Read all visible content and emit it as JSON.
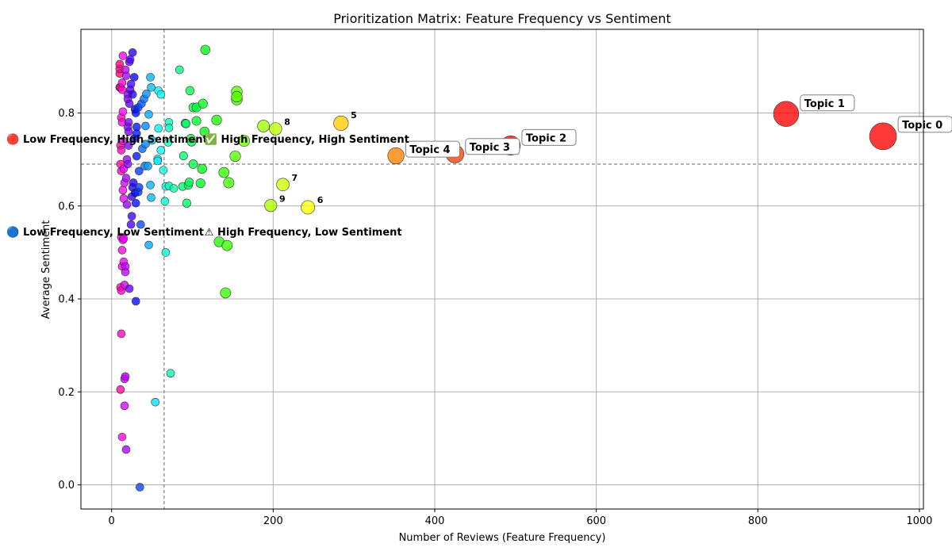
{
  "chart_data": {
    "type": "scatter",
    "title": "Prioritization Matrix: Feature Frequency vs Sentiment",
    "xlabel": "Number of Reviews (Feature Frequency)",
    "ylabel": "Average Sentiment",
    "xlim": [
      -38,
      1005
    ],
    "ylim": [
      -0.052,
      0.98
    ],
    "x_ticks": [
      0,
      200,
      400,
      600,
      800,
      1000
    ],
    "y_ticks": [
      0.0,
      0.2,
      0.4,
      0.6,
      0.8
    ],
    "y_tick_labels": [
      "0.0",
      "0.2",
      "0.4",
      "0.6",
      "0.8"
    ],
    "grid": true,
    "threshold_x": 65,
    "threshold_y": 0.69,
    "quadrant_labels": [
      {
        "text": "🔴 Low Frequency, High Sentiment",
        "x": -130,
        "y": 0.745
      },
      {
        "text": "✅ High Frequency, High Sentiment",
        "x": 115,
        "y": 0.745
      },
      {
        "text": "🔵 Low Frequency, Low Sentiment",
        "x": -130,
        "y": 0.545
      },
      {
        "text": "⚠ High Frequency, Low Sentiment",
        "x": 115,
        "y": 0.545
      }
    ],
    "colors": {
      "grid": "#b0b0b0",
      "threshold": "#808080",
      "edge": "#333333"
    },
    "points": [
      {
        "x": 955,
        "y": 0.75,
        "label": "Topic 0",
        "boxed": true
      },
      {
        "x": 835,
        "y": 0.798,
        "label": "Topic 1",
        "boxed": true
      },
      {
        "x": 494,
        "y": 0.73,
        "label": "Topic 2",
        "boxed": true
      },
      {
        "x": 425,
        "y": 0.712,
        "label": "Topic 3",
        "boxed": true
      },
      {
        "x": 352,
        "y": 0.708,
        "label": "Topic 4",
        "boxed": true
      },
      {
        "x": 284,
        "y": 0.778,
        "label": "5",
        "boxed": false
      },
      {
        "x": 243,
        "y": 0.597,
        "label": "6",
        "boxed": false
      },
      {
        "x": 212,
        "y": 0.646,
        "label": "7",
        "boxed": false
      },
      {
        "x": 203,
        "y": 0.766,
        "label": "8",
        "boxed": false
      },
      {
        "x": 197,
        "y": 0.601,
        "label": "9",
        "boxed": false
      },
      {
        "x": 188,
        "y": 0.772
      },
      {
        "x": 164,
        "y": 0.74
      },
      {
        "x": 155,
        "y": 0.829
      },
      {
        "x": 155,
        "y": 0.846
      },
      {
        "x": 155,
        "y": 0.835
      },
      {
        "x": 153,
        "y": 0.707
      },
      {
        "x": 145,
        "y": 0.65
      },
      {
        "x": 143,
        "y": 0.515
      },
      {
        "x": 141,
        "y": 0.413
      },
      {
        "x": 139,
        "y": 0.672
      },
      {
        "x": 133,
        "y": 0.523
      },
      {
        "x": 130,
        "y": 0.785
      },
      {
        "x": 116,
        "y": 0.936
      },
      {
        "x": 115,
        "y": 0.76
      },
      {
        "x": 113,
        "y": 0.82
      },
      {
        "x": 112,
        "y": 0.68
      },
      {
        "x": 110,
        "y": 0.649
      },
      {
        "x": 105,
        "y": 0.812
      },
      {
        "x": 105,
        "y": 0.783
      },
      {
        "x": 101,
        "y": 0.812
      },
      {
        "x": 101,
        "y": 0.69
      },
      {
        "x": 99,
        "y": 0.738
      },
      {
        "x": 98,
        "y": 0.745
      },
      {
        "x": 97,
        "y": 0.848
      },
      {
        "x": 96,
        "y": 0.651
      },
      {
        "x": 95,
        "y": 0.645
      },
      {
        "x": 93,
        "y": 0.606
      },
      {
        "x": 92,
        "y": 0.777
      },
      {
        "x": 91,
        "y": 0.778
      },
      {
        "x": 89,
        "y": 0.708
      },
      {
        "x": 88,
        "y": 0.642
      },
      {
        "x": 84,
        "y": 0.893
      },
      {
        "x": 77,
        "y": 0.638
      },
      {
        "x": 73,
        "y": 0.24
      },
      {
        "x": 71,
        "y": 0.78
      },
      {
        "x": 71,
        "y": 0.768
      },
      {
        "x": 71,
        "y": 0.643
      },
      {
        "x": 70,
        "y": 0.737
      },
      {
        "x": 67,
        "y": 0.642
      },
      {
        "x": 67,
        "y": 0.5
      },
      {
        "x": 66,
        "y": 0.61
      },
      {
        "x": 64,
        "y": 0.677
      },
      {
        "x": 61,
        "y": 0.84
      },
      {
        "x": 61,
        "y": 0.72
      },
      {
        "x": 58,
        "y": 0.767
      },
      {
        "x": 58,
        "y": 0.848
      },
      {
        "x": 57,
        "y": 0.701
      },
      {
        "x": 57,
        "y": 0.697
      },
      {
        "x": 54,
        "y": 0.178
      },
      {
        "x": 50,
        "y": 0.741
      },
      {
        "x": 49,
        "y": 0.855
      },
      {
        "x": 48,
        "y": 0.877
      },
      {
        "x": 49,
        "y": 0.618
      },
      {
        "x": 48,
        "y": 0.645
      },
      {
        "x": 46,
        "y": 0.797
      },
      {
        "x": 46,
        "y": 0.516
      },
      {
        "x": 45,
        "y": 0.686
      },
      {
        "x": 43,
        "y": 0.841
      },
      {
        "x": 42,
        "y": 0.772
      },
      {
        "x": 42,
        "y": 0.733
      },
      {
        "x": 41,
        "y": 0.686
      },
      {
        "x": 40,
        "y": 0.83
      },
      {
        "x": 38,
        "y": 0.723
      },
      {
        "x": 37,
        "y": 0.82
      },
      {
        "x": 36,
        "y": 0.56
      },
      {
        "x": 35,
        "y": -0.005
      },
      {
        "x": 34,
        "y": 0.675
      },
      {
        "x": 34,
        "y": 0.64
      },
      {
        "x": 33,
        "y": 0.812
      },
      {
        "x": 33,
        "y": 0.63
      },
      {
        "x": 31,
        "y": 0.77
      },
      {
        "x": 31,
        "y": 0.756
      },
      {
        "x": 31,
        "y": 0.707
      },
      {
        "x": 30,
        "y": 0.8
      },
      {
        "x": 30,
        "y": 0.606
      },
      {
        "x": 30,
        "y": 0.395
      },
      {
        "x": 29,
        "y": 0.808
      },
      {
        "x": 29,
        "y": 0.628
      },
      {
        "x": 28,
        "y": 0.877
      },
      {
        "x": 28,
        "y": 0.745
      },
      {
        "x": 27,
        "y": 0.65
      },
      {
        "x": 26,
        "y": 0.93
      },
      {
        "x": 26,
        "y": 0.84
      },
      {
        "x": 26,
        "y": 0.64
      },
      {
        "x": 25,
        "y": 0.578
      },
      {
        "x": 25,
        "y": 0.62
      },
      {
        "x": 24,
        "y": 0.862
      },
      {
        "x": 24,
        "y": 0.56
      },
      {
        "x": 23,
        "y": 0.915
      },
      {
        "x": 23,
        "y": 0.85
      },
      {
        "x": 22,
        "y": 0.91
      },
      {
        "x": 22,
        "y": 0.82
      },
      {
        "x": 22,
        "y": 0.422
      },
      {
        "x": 21,
        "y": 0.78
      },
      {
        "x": 21,
        "y": 0.76
      },
      {
        "x": 21,
        "y": 0.73
      },
      {
        "x": 20,
        "y": 0.84
      },
      {
        "x": 20,
        "y": 0.83
      },
      {
        "x": 20,
        "y": 0.77
      },
      {
        "x": 20,
        "y": 0.69
      },
      {
        "x": 19,
        "y": 0.7
      },
      {
        "x": 19,
        "y": 0.603
      },
      {
        "x": 18,
        "y": 0.076
      },
      {
        "x": 18,
        "y": 0.88
      },
      {
        "x": 18,
        "y": 0.66
      },
      {
        "x": 17,
        "y": 0.893
      },
      {
        "x": 17,
        "y": 0.458
      },
      {
        "x": 17,
        "y": 0.47
      },
      {
        "x": 17,
        "y": 0.233
      },
      {
        "x": 16,
        "y": 0.17
      },
      {
        "x": 16,
        "y": 0.65
      },
      {
        "x": 16,
        "y": 0.43
      },
      {
        "x": 16,
        "y": 0.228
      },
      {
        "x": 15,
        "y": 0.48
      },
      {
        "x": 15,
        "y": 0.53
      },
      {
        "x": 15,
        "y": 0.616
      },
      {
        "x": 15,
        "y": 0.68
      },
      {
        "x": 14,
        "y": 0.923
      },
      {
        "x": 14,
        "y": 0.803
      },
      {
        "x": 14,
        "y": 0.74
      },
      {
        "x": 14,
        "y": 0.634
      },
      {
        "x": 14,
        "y": 0.527
      },
      {
        "x": 13,
        "y": 0.103
      },
      {
        "x": 13,
        "y": 0.47
      },
      {
        "x": 13,
        "y": 0.505
      },
      {
        "x": 13,
        "y": 0.78
      },
      {
        "x": 13,
        "y": 0.85
      },
      {
        "x": 13,
        "y": 0.865
      },
      {
        "x": 12,
        "y": 0.325
      },
      {
        "x": 12,
        "y": 0.418
      },
      {
        "x": 12,
        "y": 0.533
      },
      {
        "x": 12,
        "y": 0.675
      },
      {
        "x": 12,
        "y": 0.72
      },
      {
        "x": 12,
        "y": 0.79
      },
      {
        "x": 11,
        "y": 0.205
      },
      {
        "x": 11,
        "y": 0.425
      },
      {
        "x": 11,
        "y": 0.69
      },
      {
        "x": 11,
        "y": 0.73
      },
      {
        "x": 11,
        "y": 0.855
      },
      {
        "x": 10,
        "y": 0.885
      },
      {
        "x": 10,
        "y": 0.895
      },
      {
        "x": 10,
        "y": 0.905
      },
      {
        "x": 10,
        "y": 0.855
      }
    ]
  }
}
